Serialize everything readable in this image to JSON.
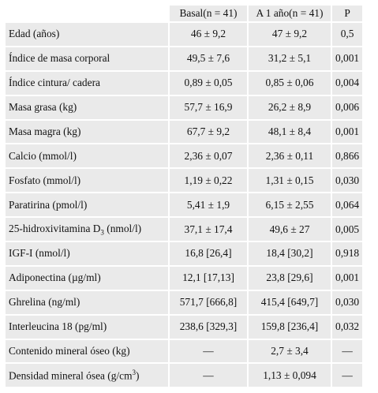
{
  "headers": [
    "",
    "Basal(n = 41)",
    "A 1 año(n = 41)",
    "P"
  ],
  "rows": [
    {
      "label": "Edad (años)",
      "basal": "46 ± 9,2",
      "year1": "47 ± 9,2",
      "p": "0,5"
    },
    {
      "label": "Índice de masa corporal",
      "basal": "49,5 ± 7,6",
      "year1": "31,2 ± 5,1",
      "p": "0,001"
    },
    {
      "label": "Índice cintura/ cadera",
      "basal": "0,89 ± 0,05",
      "year1": "0,85 ± 0,06",
      "p": "0,004"
    },
    {
      "label": "Masa grasa (kg)",
      "basal": "57,7 ± 16,9",
      "year1": "26,2 ± 8,9",
      "p": "0,006"
    },
    {
      "label": "Masa magra (kg)",
      "basal": "67,7 ± 9,2",
      "year1": "48,1 ± 8,4",
      "p": "0,001"
    },
    {
      "label": "Calcio (mmol/l)",
      "basal": "2,36 ± 0,07",
      "year1": "2,36 ± 0,11",
      "p": "0,866"
    },
    {
      "label": "Fosfato (mmol/l)",
      "basal": "1,19 ± 0,22",
      "year1": "1,31 ± 0,15",
      "p": "0,030"
    },
    {
      "label": "Paratirina (pmol/l)",
      "basal": "5,41 ± 1,9",
      "year1": "6,15 ± 2,55",
      "p": "0,064"
    },
    {
      "label_pre": "25-hidroxivitamina D",
      "label_sub": "3",
      "label_post": " (nmol/l)",
      "basal": "37,1 ± 17,4",
      "year1": "49,6 ± 27",
      "p": "0,005"
    },
    {
      "label": "IGF-I (nmol/l)",
      "basal": "16,8 [26,4]",
      "year1": "18,4 [30,2]",
      "p": "0,918"
    },
    {
      "label": "Adiponectina (µg/ml)",
      "basal": "12,1 [17,13]",
      "year1": "23,8 [29,6]",
      "p": "0,001"
    },
    {
      "label": "Ghrelina (ng/ml)",
      "basal": "571,7 [666,8]",
      "year1": "415,4 [649,7]",
      "p": "0,030"
    },
    {
      "label": "Interleucina 18 (pg/ml)",
      "basal": "238,6 [329,3]",
      "year1": "159,8 [236,4]",
      "p": "0,032"
    },
    {
      "label": "Contenido mineral óseo (kg)",
      "basal": "—",
      "year1": "2,7 ± 3,4",
      "p": "—"
    },
    {
      "label_pre": "Densidad mineral ósea (g/cm",
      "label_sup": "3",
      "label_post": ")",
      "basal": "—",
      "year1": "1,13 ± 0,094",
      "p": "—"
    }
  ]
}
